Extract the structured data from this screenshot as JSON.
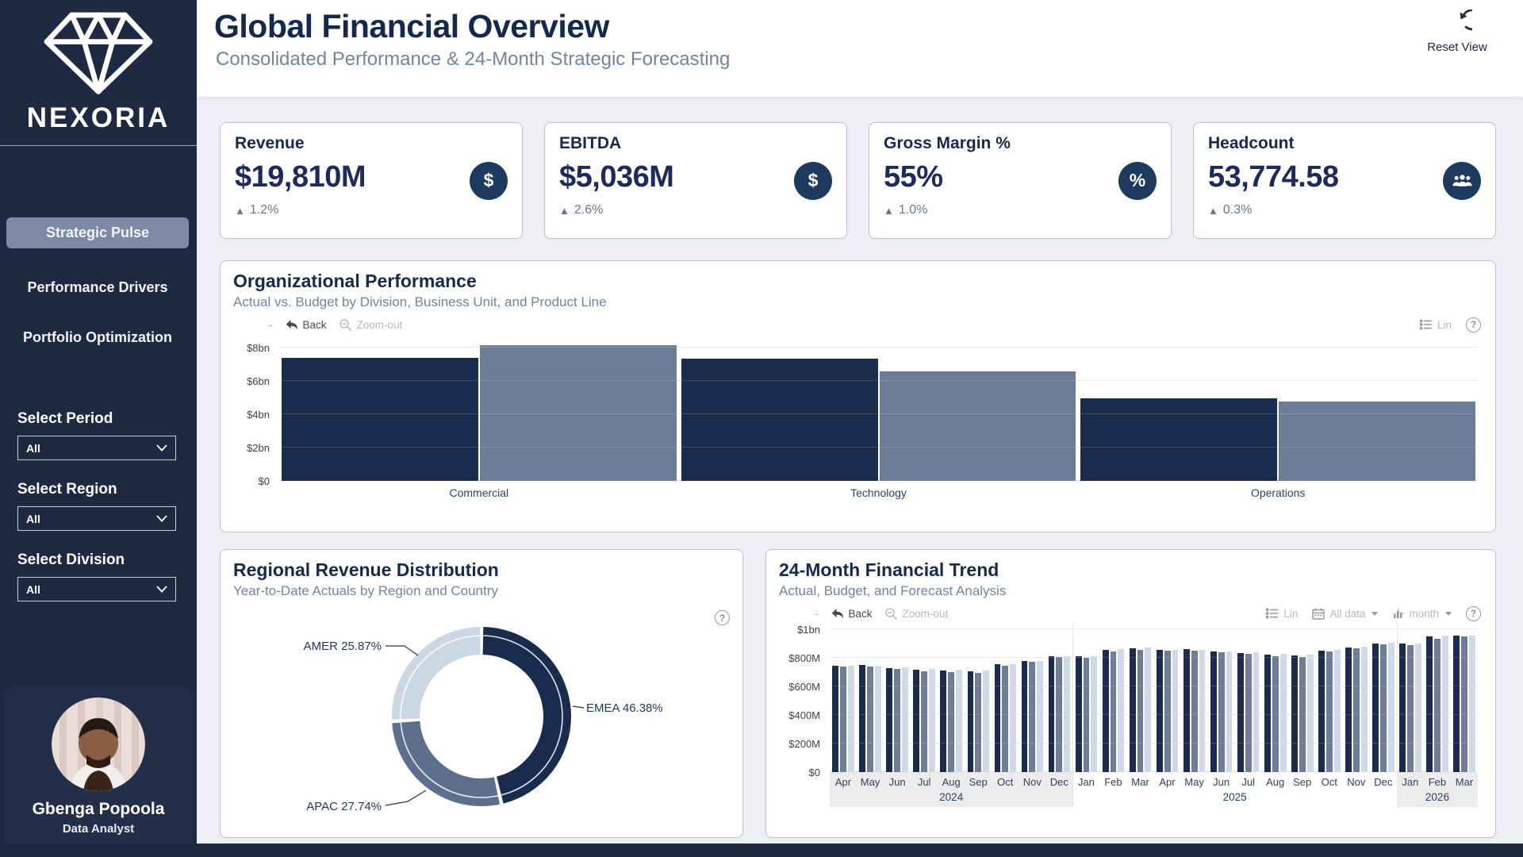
{
  "brand": {
    "name": "NEXORIA"
  },
  "header": {
    "title": "Global Financial Overview",
    "subtitle": "Consolidated Performance & 24-Month Strategic Forecasting",
    "reset_label": "Reset View"
  },
  "sidebar": {
    "nav": [
      {
        "label": "Strategic Pulse",
        "active": true
      },
      {
        "label": "Performance Drivers",
        "active": false
      },
      {
        "label": "Portfolio Optimization",
        "active": false
      }
    ],
    "filters": [
      {
        "label": "Select Period",
        "value": "All"
      },
      {
        "label": "Select Region",
        "value": "All"
      },
      {
        "label": "Select Division",
        "value": "All"
      }
    ],
    "profile": {
      "name": "Gbenga Popoola",
      "role": "Data Analyst"
    }
  },
  "icons": {
    "up_arrow": "▲",
    "help": "?",
    "dash": "-"
  },
  "kpis": [
    {
      "label": "Revenue",
      "value": "$19,810M",
      "delta": "1.2%",
      "icon_glyph": "$"
    },
    {
      "label": "EBITDA",
      "value": "$5,036M",
      "delta": "2.6%",
      "icon_glyph": "$"
    },
    {
      "label": "Gross Margin %",
      "value": "55%",
      "delta": "1.0%",
      "icon_glyph": "%"
    },
    {
      "label": "Headcount",
      "value": "53,774.58",
      "delta": "0.3%",
      "icon_glyph": ""
    }
  ],
  "cards": {
    "org": {
      "title": "Organizational Performance",
      "subtitle": "Actual vs. Budget by Division, Business Unit, and Product Line",
      "toolbar": {
        "back": "Back",
        "zoom_out": "Zoom-out",
        "lin": "Lin"
      }
    },
    "donut": {
      "title": "Regional Revenue Distribution",
      "subtitle": "Year-to-Date Actuals by Region and Country"
    },
    "trend": {
      "title": "24-Month Financial Trend",
      "subtitle": "Actual, Budget, and Forecast Analysis",
      "toolbar": {
        "back": "Back",
        "zoom_out": "Zoom-out",
        "lin": "Lin",
        "all_data": "All data",
        "interval": "month"
      }
    }
  },
  "chart_data": [
    {
      "id": "org_performance",
      "type": "bar",
      "title": "Organizational Performance",
      "subtitle": "Actual vs. Budget by Division, Business Unit, and Product Line",
      "categories": [
        "Commercial",
        "Technology",
        "Operations"
      ],
      "series": [
        {
          "name": "Actual",
          "color": "#1a2c4e",
          "values": [
            7.4,
            7.35,
            4.95
          ]
        },
        {
          "name": "Budget",
          "color": "#6d7d99",
          "values": [
            8.15,
            6.55,
            4.75
          ]
        }
      ],
      "unit": "bn USD",
      "ylim": [
        0,
        8.8
      ],
      "yticks": [
        {
          "label": "$0",
          "value": 0
        },
        {
          "label": "$2bn",
          "value": 2
        },
        {
          "label": "$4bn",
          "value": 4
        },
        {
          "label": "$6bn",
          "value": 6
        },
        {
          "label": "$8bn",
          "value": 8
        }
      ],
      "grid": true,
      "legend": "none"
    },
    {
      "id": "regional_revenue",
      "type": "pie",
      "title": "Regional Revenue Distribution",
      "subtitle": "Year-to-Date Actuals by Region and Country",
      "slices": [
        {
          "label": "EMEA",
          "value": 46.38,
          "color": "#1a2c4e"
        },
        {
          "label": "APAC",
          "value": 27.74,
          "color": "#5d6f8c"
        },
        {
          "label": "AMER",
          "value": 25.87,
          "color": "#ccd7e4"
        }
      ],
      "donut": true,
      "start_angle": "top",
      "direction": "clockwise",
      "labels": "outside-with-leader-lines"
    },
    {
      "id": "financial_trend",
      "type": "bar",
      "title": "24-Month Financial Trend",
      "subtitle": "Actual, Budget, and Forecast Analysis",
      "x": [
        "Apr",
        "May",
        "Jun",
        "Jul",
        "Aug",
        "Sep",
        "Oct",
        "Nov",
        "Dec",
        "Jan",
        "Feb",
        "Mar",
        "Apr",
        "May",
        "Jun",
        "Jul",
        "Aug",
        "Sep",
        "Oct",
        "Nov",
        "Dec",
        "Jan",
        "Feb",
        "Mar"
      ],
      "years": [
        {
          "label": "2024",
          "from": 0,
          "to": 8,
          "shaded": true
        },
        {
          "label": "2025",
          "from": 9,
          "to": 20,
          "shaded": false
        },
        {
          "label": "2026",
          "from": 21,
          "to": 23,
          "shaded": true
        }
      ],
      "unit": "M USD",
      "ylim": [
        0,
        1040
      ],
      "yticks": [
        {
          "label": "$0",
          "value": 0
        },
        {
          "label": "$200M",
          "value": 200
        },
        {
          "label": "$400M",
          "value": 400
        },
        {
          "label": "$600M",
          "value": 600
        },
        {
          "label": "$800M",
          "value": 800
        },
        {
          "label": "$1bn",
          "value": 1000
        }
      ],
      "series": [
        {
          "name": "Actual",
          "color": "#1a2c4e",
          "values": [
            745,
            748,
            730,
            718,
            712,
            706,
            756,
            780,
            812,
            810,
            856,
            868,
            858,
            862,
            845,
            835,
            822,
            816,
            852,
            872,
            900,
            898,
            952,
            956
          ]
        },
        {
          "name": "Budget",
          "color": "#6d7d99",
          "values": [
            740,
            737,
            724,
            708,
            702,
            696,
            746,
            771,
            804,
            800,
            844,
            856,
            850,
            852,
            838,
            826,
            810,
            806,
            842,
            866,
            892,
            888,
            934,
            948
          ]
        },
        {
          "name": "Forecast",
          "color": "#cfd9e8",
          "values": [
            743,
            744,
            733,
            721,
            714,
            710,
            753,
            778,
            811,
            812,
            859,
            870,
            856,
            858,
            847,
            838,
            826,
            820,
            857,
            876,
            905,
            902,
            955,
            958
          ]
        }
      ],
      "grid": true,
      "legend": "none"
    }
  ]
}
